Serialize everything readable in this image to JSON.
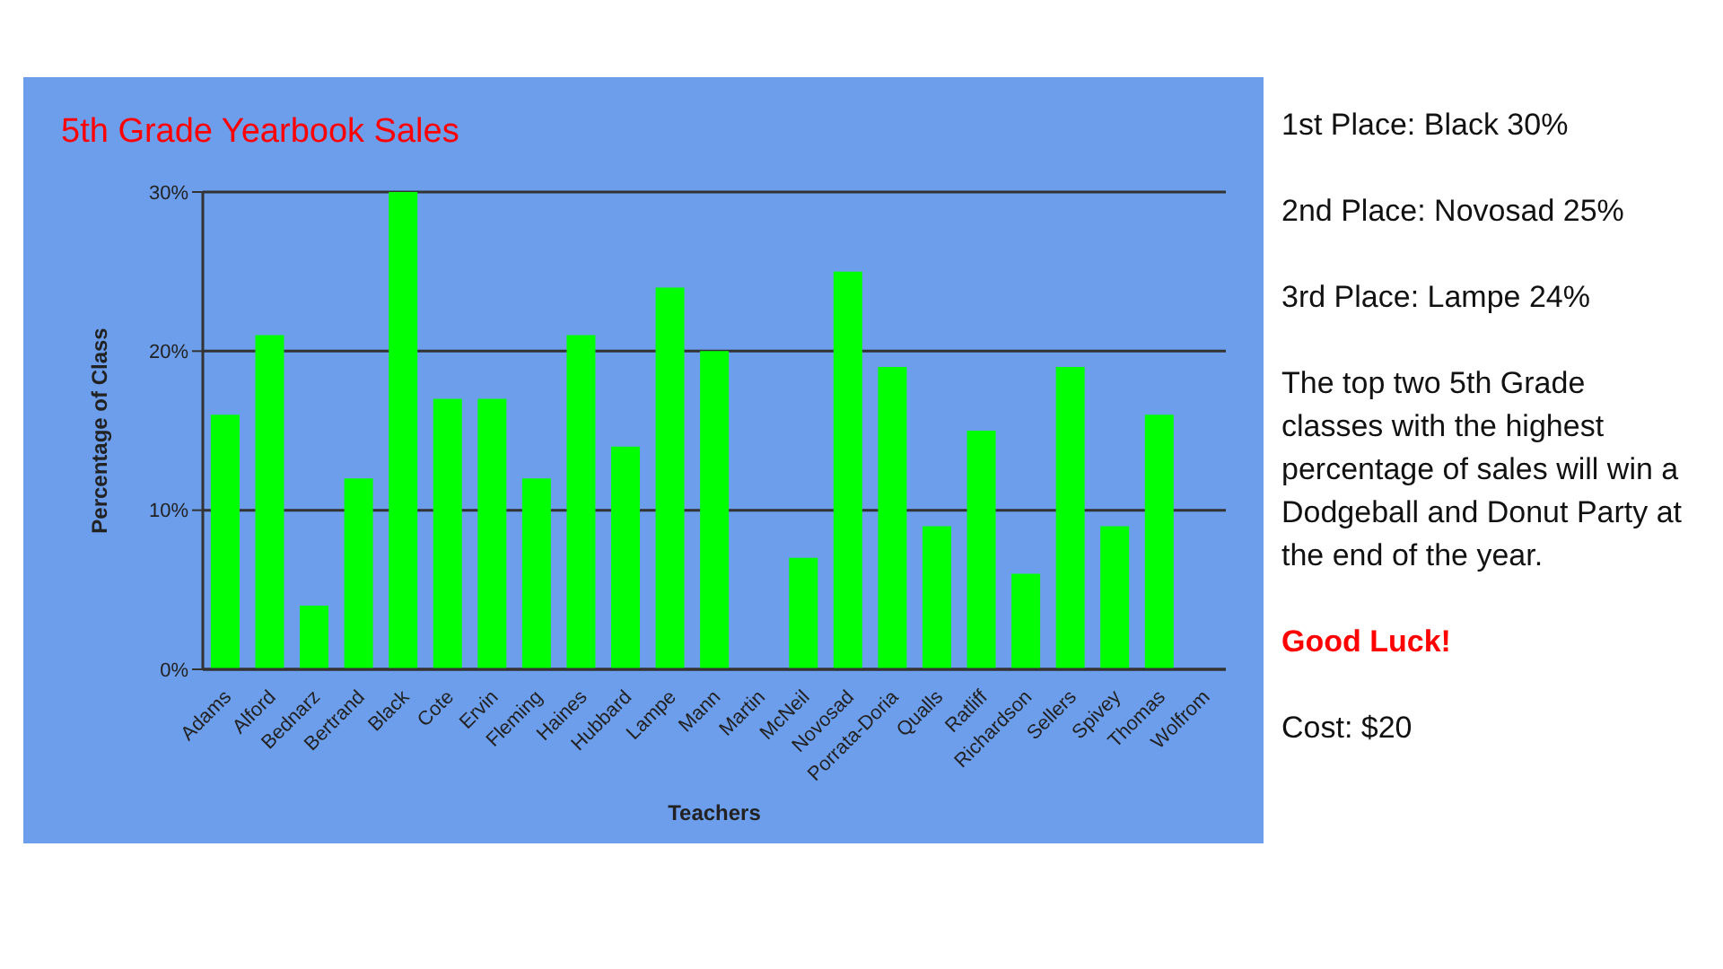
{
  "chart_data": {
    "type": "bar",
    "title": "5th Grade Yearbook Sales",
    "xlabel": "Teachers",
    "ylabel": "Percentage of Class",
    "categories": [
      "Adams",
      "Alford",
      "Bednarz",
      "Bertrand",
      "Black",
      "Cote",
      "Ervin",
      "Fleming",
      "Haines",
      "Hubbard",
      "Lampe",
      "Mann",
      "Martin",
      "McNeil",
      "Novosad",
      "Porrata-Doria",
      "Qualls",
      "Ratliff",
      "Richardson",
      "Sellers",
      "Spivey",
      "Thomas",
      "Wolfrom"
    ],
    "values": [
      16,
      21,
      4,
      12,
      30,
      17,
      17,
      12,
      21,
      14,
      24,
      20,
      null,
      7,
      25,
      19,
      9,
      15,
      6,
      19,
      9,
      16,
      null
    ],
    "color": "#00ff00",
    "ylim": [
      0,
      30
    ],
    "yticks": [
      {
        "value": 0,
        "label": "0%"
      },
      {
        "value": 10,
        "label": "10%"
      },
      {
        "value": 20,
        "label": "20%"
      },
      {
        "value": 30,
        "label": "30%"
      }
    ],
    "grid": "y",
    "annotations": [
      "1st Place: Black 30%",
      "2nd Place: Novosad 25%",
      "3rd Place: Lampe 24%",
      "The top two 5th Grade classes with the highest percentage of sales will win a Dodgeball and Donut Party at the end of the year.",
      "Good Luck!",
      "Cost: $20"
    ]
  }
}
